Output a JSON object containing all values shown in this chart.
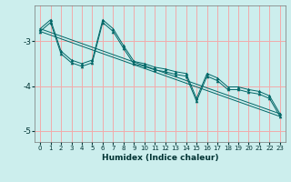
{
  "xlabel": "Humidex (Indice chaleur)",
  "background_color": "#cceeed",
  "grid_color": "#f2aaaa",
  "line_color": "#006666",
  "xlim": [
    -0.5,
    23.5
  ],
  "ylim": [
    -5.25,
    -2.2
  ],
  "yticks": [
    -5,
    -4,
    -3
  ],
  "xticks": [
    0,
    1,
    2,
    3,
    4,
    5,
    6,
    7,
    8,
    9,
    10,
    11,
    12,
    13,
    14,
    15,
    16,
    17,
    18,
    19,
    20,
    21,
    22,
    23
  ],
  "series1_x": [
    0,
    1,
    2,
    3,
    4,
    5,
    6,
    7,
    8,
    9,
    10,
    11,
    12,
    13,
    14,
    15,
    16,
    17,
    18,
    19,
    20,
    21,
    22,
    23
  ],
  "series1_y": [
    -2.72,
    -2.52,
    -3.22,
    -3.42,
    -3.5,
    -3.42,
    -2.52,
    -2.72,
    -3.1,
    -3.45,
    -3.5,
    -3.58,
    -3.62,
    -3.68,
    -3.72,
    -4.28,
    -3.72,
    -3.82,
    -4.02,
    -4.02,
    -4.08,
    -4.12,
    -4.22,
    -4.62
  ],
  "series2_x": [
    0,
    1,
    2,
    3,
    4,
    5,
    6,
    7,
    8,
    9,
    10,
    11,
    12,
    13,
    14,
    15,
    16,
    17,
    18,
    19,
    20,
    21,
    22,
    23
  ],
  "series2_y": [
    -2.78,
    -2.58,
    -3.28,
    -3.48,
    -3.56,
    -3.48,
    -2.58,
    -2.78,
    -3.16,
    -3.51,
    -3.56,
    -3.64,
    -3.68,
    -3.74,
    -3.78,
    -4.34,
    -3.78,
    -3.88,
    -4.08,
    -4.08,
    -4.14,
    -4.18,
    -4.28,
    -4.68
  ],
  "trend1_x": [
    0,
    23
  ],
  "trend1_y": [
    -2.72,
    -4.62
  ],
  "trend2_x": [
    0,
    23
  ],
  "trend2_y": [
    -2.78,
    -4.68
  ]
}
